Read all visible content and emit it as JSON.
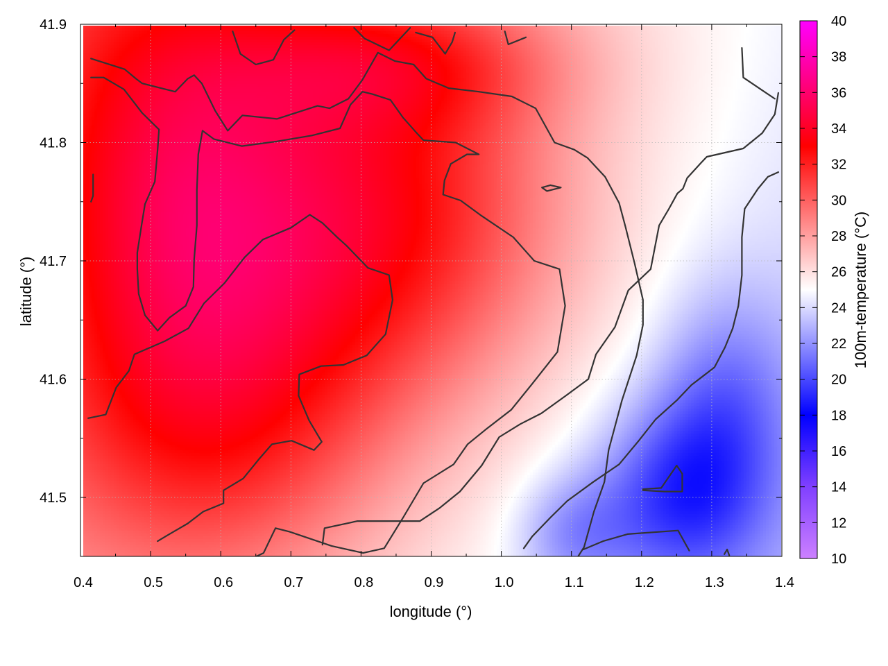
{
  "chart_data": {
    "type": "heatmap",
    "title": "",
    "xlabel": "longitude (°)",
    "ylabel": "latitude (°)",
    "colorbar_label": "100m-temperature (°C)",
    "xlim": [
      0.4,
      1.4
    ],
    "ylim": [
      41.45,
      41.9
    ],
    "zlim": [
      10,
      40
    ],
    "x_ticks": [
      "0.4",
      "0.5",
      "0.6",
      "0.7",
      "0.8",
      "0.9",
      "1.0",
      "1.1",
      "1.2",
      "1.3",
      "1.4"
    ],
    "y_ticks": [
      "41.5",
      "41.6",
      "41.7",
      "41.8",
      "41.9"
    ],
    "colorbar_ticks": [
      "10",
      "12",
      "14",
      "16",
      "18",
      "20",
      "22",
      "24",
      "26",
      "28",
      "30",
      "32",
      "34",
      "36",
      "38",
      "40"
    ],
    "grid": true,
    "colormap": [
      {
        "value": 10,
        "color": "#cc80ff"
      },
      {
        "value": 14,
        "color": "#8040ff"
      },
      {
        "value": 18,
        "color": "#0000ff"
      },
      {
        "value": 25,
        "color": "#ffffff"
      },
      {
        "value": 33,
        "color": "#ff0000"
      },
      {
        "value": 40,
        "color": "#ff00ff"
      }
    ],
    "temperature_field": {
      "base": 26,
      "features": [
        {
          "lon": 0.82,
          "lat": 41.74,
          "amplitude": 6.5,
          "radius_lon": 0.28,
          "radius_lat": 0.16
        },
        {
          "lon": 0.52,
          "lat": 41.78,
          "amplitude": 5.0,
          "radius_lon": 0.2,
          "radius_lat": 0.2
        },
        {
          "lon": 0.6,
          "lat": 41.56,
          "amplitude": 4.5,
          "radius_lon": 0.25,
          "radius_lat": 0.15
        },
        {
          "lon": 0.85,
          "lat": 41.87,
          "amplitude": 3.5,
          "radius_lon": 0.25,
          "radius_lat": 0.06
        },
        {
          "lon": 1.25,
          "lat": 41.5,
          "amplitude": -4.5,
          "radius_lon": 0.12,
          "radius_lat": 0.08
        },
        {
          "lon": 1.32,
          "lat": 41.58,
          "amplitude": -3.0,
          "radius_lon": 0.1,
          "radius_lat": 0.1
        },
        {
          "lon": 1.1,
          "lat": 41.47,
          "amplitude": -2.5,
          "radius_lon": 0.08,
          "radius_lat": 0.05
        }
      ],
      "gradient": {
        "lon_coef": -4.0,
        "lat_coef": 3.0,
        "lon_ref": 0.9,
        "lat_ref": 41.67
      }
    },
    "contours": [
      [
        [
          0.415,
          41.871
        ],
        [
          0.463,
          41.862
        ],
        [
          0.479,
          41.854
        ],
        [
          0.488,
          41.85
        ],
        [
          0.535,
          41.843
        ],
        [
          0.553,
          41.854
        ],
        [
          0.562,
          41.857
        ],
        [
          0.573,
          41.85
        ],
        [
          0.592,
          41.827
        ],
        [
          0.61,
          41.81
        ],
        [
          0.631,
          41.823
        ],
        [
          0.68,
          41.82
        ],
        [
          0.738,
          41.831
        ],
        [
          0.755,
          41.829
        ],
        [
          0.782,
          41.837
        ],
        [
          0.802,
          41.853
        ],
        [
          0.824,
          41.876
        ],
        [
          0.848,
          41.869
        ],
        [
          0.875,
          41.866
        ],
        [
          0.893,
          41.854
        ],
        [
          0.925,
          41.846
        ],
        [
          0.968,
          41.843
        ],
        [
          1.015,
          41.839
        ],
        [
          1.049,
          41.829
        ],
        [
          1.076,
          41.8
        ],
        [
          1.104,
          41.794
        ],
        [
          1.123,
          41.787
        ],
        [
          1.148,
          41.771
        ],
        [
          1.168,
          41.749
        ],
        [
          1.177,
          41.729
        ],
        [
          1.19,
          41.698
        ],
        [
          1.202,
          41.667
        ],
        [
          1.202,
          41.646
        ],
        [
          1.193,
          41.62
        ],
        [
          1.172,
          41.582
        ],
        [
          1.153,
          41.54
        ],
        [
          1.147,
          41.513
        ],
        [
          1.132,
          41.488
        ],
        [
          1.118,
          41.458
        ],
        [
          1.103,
          41.444
        ]
      ],
      [
        [
          0.415,
          41.855
        ],
        [
          0.433,
          41.855
        ],
        [
          0.462,
          41.845
        ],
        [
          0.488,
          41.825
        ],
        [
          0.512,
          41.811
        ],
        [
          0.51,
          41.794
        ],
        [
          0.506,
          41.767
        ],
        [
          0.492,
          41.748
        ],
        [
          0.487,
          41.73
        ],
        [
          0.481,
          41.707
        ],
        [
          0.481,
          41.693
        ],
        [
          0.483,
          41.672
        ],
        [
          0.492,
          41.654
        ],
        [
          0.51,
          41.641
        ],
        [
          0.527,
          41.652
        ],
        [
          0.55,
          41.662
        ],
        [
          0.561,
          41.678
        ],
        [
          0.562,
          41.701
        ],
        [
          0.566,
          41.73
        ],
        [
          0.566,
          41.76
        ],
        [
          0.568,
          41.79
        ],
        [
          0.574,
          41.81
        ],
        [
          0.59,
          41.803
        ],
        [
          0.63,
          41.797
        ],
        [
          0.68,
          41.801
        ],
        [
          0.73,
          41.806
        ],
        [
          0.77,
          41.812
        ],
        [
          0.785,
          41.832
        ],
        [
          0.802,
          41.843
        ],
        [
          0.816,
          41.841
        ],
        [
          0.842,
          41.836
        ],
        [
          0.86,
          41.821
        ],
        [
          0.878,
          41.809
        ],
        [
          0.889,
          41.802
        ],
        [
          0.935,
          41.8
        ],
        [
          0.968,
          41.79
        ],
        [
          0.951,
          41.79
        ],
        [
          0.928,
          41.782
        ],
        [
          0.919,
          41.768
        ],
        [
          0.917,
          41.756
        ],
        [
          0.942,
          41.751
        ],
        [
          0.972,
          41.738
        ],
        [
          1.017,
          41.72
        ],
        [
          1.047,
          41.7
        ],
        [
          1.083,
          41.693
        ],
        [
          1.091,
          41.662
        ],
        [
          1.08,
          41.623
        ],
        [
          1.044,
          41.596
        ],
        [
          1.014,
          41.574
        ],
        [
          0.977,
          41.557
        ],
        [
          0.952,
          41.545
        ],
        [
          0.932,
          41.528
        ],
        [
          0.889,
          41.512
        ],
        [
          0.86,
          41.483
        ],
        [
          0.833,
          41.457
        ],
        [
          0.803,
          41.453
        ],
        [
          0.758,
          41.459
        ],
        [
          0.698,
          41.471
        ],
        [
          0.678,
          41.474
        ],
        [
          0.661,
          41.453
        ],
        [
          0.643,
          41.448
        ]
      ],
      [
        [
          0.411,
          41.567
        ],
        [
          0.436,
          41.57
        ],
        [
          0.451,
          41.593
        ],
        [
          0.469,
          41.607
        ],
        [
          0.477,
          41.621
        ],
        [
          0.52,
          41.632
        ],
        [
          0.554,
          41.643
        ],
        [
          0.576,
          41.664
        ],
        [
          0.605,
          41.681
        ],
        [
          0.634,
          41.703
        ],
        [
          0.66,
          41.718
        ],
        [
          0.7,
          41.728
        ],
        [
          0.727,
          41.739
        ],
        [
          0.745,
          41.732
        ],
        [
          0.766,
          41.72
        ],
        [
          0.779,
          41.713
        ],
        [
          0.81,
          41.694
        ],
        [
          0.84,
          41.688
        ],
        [
          0.845,
          41.667
        ],
        [
          0.835,
          41.638
        ],
        [
          0.808,
          41.62
        ],
        [
          0.775,
          41.612
        ],
        [
          0.743,
          41.611
        ],
        [
          0.712,
          41.604
        ],
        [
          0.711,
          41.586
        ],
        [
          0.726,
          41.565
        ],
        [
          0.744,
          41.547
        ],
        [
          0.733,
          41.54
        ],
        [
          0.701,
          41.548
        ],
        [
          0.673,
          41.545
        ],
        [
          0.654,
          41.532
        ],
        [
          0.632,
          41.516
        ],
        [
          0.604,
          41.506
        ],
        [
          0.604,
          41.495
        ],
        [
          0.575,
          41.488
        ],
        [
          0.553,
          41.478
        ],
        [
          0.524,
          41.468
        ],
        [
          0.51,
          41.463
        ]
      ],
      [
        [
          0.745,
          41.46
        ],
        [
          0.748,
          41.474
        ],
        [
          0.795,
          41.48
        ],
        [
          0.884,
          41.48
        ],
        [
          0.912,
          41.491
        ],
        [
          0.941,
          41.505
        ],
        [
          0.972,
          41.527
        ],
        [
          0.997,
          41.551
        ],
        [
          1.027,
          41.562
        ],
        [
          1.057,
          41.571
        ],
        [
          1.092,
          41.586
        ],
        [
          1.124,
          41.6
        ],
        [
          1.135,
          41.621
        ],
        [
          1.162,
          41.644
        ],
        [
          1.181,
          41.675
        ],
        [
          1.213,
          41.693
        ],
        [
          1.225,
          41.73
        ],
        [
          1.239,
          41.744
        ],
        [
          1.251,
          41.757
        ],
        [
          1.259,
          41.761
        ],
        [
          1.265,
          41.77
        ],
        [
          1.285,
          41.783
        ],
        [
          1.293,
          41.788
        ],
        [
          1.345,
          41.795
        ],
        [
          1.372,
          41.808
        ],
        [
          1.39,
          41.824
        ],
        [
          1.395,
          41.842
        ]
      ],
      [
        [
          1.032,
          41.457
        ],
        [
          1.044,
          41.467
        ],
        [
          1.07,
          41.483
        ],
        [
          1.094,
          41.497
        ],
        [
          1.131,
          41.513
        ],
        [
          1.168,
          41.528
        ],
        [
          1.196,
          41.548
        ],
        [
          1.22,
          41.566
        ],
        [
          1.25,
          41.582
        ],
        [
          1.271,
          41.595
        ],
        [
          1.304,
          41.61
        ],
        [
          1.319,
          41.627
        ],
        [
          1.33,
          41.643
        ],
        [
          1.338,
          41.662
        ],
        [
          1.343,
          41.688
        ],
        [
          1.343,
          41.72
        ],
        [
          1.347,
          41.744
        ],
        [
          1.366,
          41.761
        ],
        [
          1.38,
          41.771
        ],
        [
          1.395,
          41.775
        ]
      ],
      [
        [
          0.617,
          41.894
        ],
        [
          0.628,
          41.875
        ],
        [
          0.65,
          41.866
        ],
        [
          0.675,
          41.87
        ],
        [
          0.69,
          41.887
        ],
        [
          0.705,
          41.895
        ]
      ],
      [
        [
          0.878,
          41.893
        ],
        [
          0.902,
          41.889
        ],
        [
          0.92,
          41.875
        ],
        [
          0.93,
          41.885
        ],
        [
          0.934,
          41.893
        ]
      ],
      [
        [
          0.79,
          41.897
        ],
        [
          0.805,
          41.888
        ],
        [
          0.84,
          41.878
        ],
        [
          0.87,
          41.897
        ]
      ],
      [
        [
          1.005,
          41.894
        ],
        [
          1.01,
          41.883
        ],
        [
          1.035,
          41.889
        ]
      ],
      [
        [
          1.343,
          41.88
        ],
        [
          1.345,
          41.855
        ],
        [
          1.37,
          41.845
        ],
        [
          1.39,
          41.837
        ]
      ],
      [
        [
          0.415,
          41.75
        ],
        [
          0.418,
          41.755
        ],
        [
          0.418,
          41.773
        ]
      ],
      [
        [
          1.058,
          41.762
        ],
        [
          1.07,
          41.764
        ],
        [
          1.085,
          41.762
        ],
        [
          1.065,
          41.759
        ],
        [
          1.058,
          41.762
        ]
      ],
      [
        [
          1.202,
          41.507
        ],
        [
          1.228,
          41.508
        ],
        [
          1.25,
          41.527
        ],
        [
          1.258,
          41.52
        ],
        [
          1.258,
          41.505
        ],
        [
          1.232,
          41.505
        ],
        [
          1.202,
          41.506
        ]
      ],
      [
        [
          1.117,
          41.456
        ],
        [
          1.145,
          41.463
        ],
        [
          1.18,
          41.469
        ],
        [
          1.252,
          41.472
        ],
        [
          1.268,
          41.455
        ]
      ],
      [
        [
          1.318,
          41.452
        ],
        [
          1.322,
          41.456
        ],
        [
          1.325,
          41.451
        ]
      ]
    ]
  }
}
